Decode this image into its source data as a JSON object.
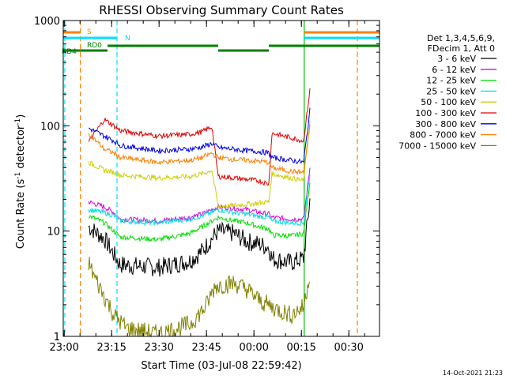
{
  "chart_data": {
    "type": "line",
    "title": "RHESSI Observing Summary Count Rates",
    "xlabel": "Start Time (03-Jul-08 22:59:42)",
    "ylabel_main": "Count Rate (s",
    "ylabel_sup": "-1",
    "ylabel_mid": " detector",
    "ylabel_end": ")",
    "x_unit": "minutes after 22:59:42",
    "xlim": [
      0,
      100
    ],
    "ylim": [
      1,
      1000
    ],
    "yscale": "log",
    "x_ticks": [
      {
        "label": "23:00",
        "t": 0.3
      },
      {
        "label": "23:15",
        "t": 15.3
      },
      {
        "label": "23:30",
        "t": 30.3
      },
      {
        "label": "23:45",
        "t": 45.3
      },
      {
        "label": "00:00",
        "t": 60.3
      },
      {
        "label": "00:15",
        "t": 75.3
      },
      {
        "label": "00:30",
        "t": 90.3
      }
    ],
    "y_ticks": [
      {
        "label": "1",
        "v": 1
      },
      {
        "label": "10",
        "v": 10
      },
      {
        "label": "100",
        "v": 100
      },
      {
        "label": "1000",
        "v": 1000
      }
    ],
    "legend_header": [
      "Det 1,3,4,5,6,9,",
      "FDecim 1, Att 0"
    ],
    "legend_placement": "right",
    "series": [
      {
        "name": "3 - 6 keV",
        "color": "#000000",
        "points": [
          [
            8,
            11
          ],
          [
            13,
            8.5
          ],
          [
            16,
            6
          ],
          [
            18,
            4.8
          ],
          [
            30,
            4.5
          ],
          [
            40,
            5.2
          ],
          [
            44,
            6.5
          ],
          [
            47,
            8.5
          ],
          [
            49,
            10
          ],
          [
            54,
            9.5
          ],
          [
            58,
            8
          ],
          [
            62,
            7.5
          ],
          [
            65,
            7
          ],
          [
            66,
            5.5
          ],
          [
            72,
            5
          ],
          [
            76,
            5.5
          ],
          [
            78,
            20
          ]
        ]
      },
      {
        "name": "6 - 12 keV",
        "color": "#e000e0",
        "points": [
          [
            8,
            19
          ],
          [
            13,
            17
          ],
          [
            16,
            15
          ],
          [
            18,
            13
          ],
          [
            30,
            12.5
          ],
          [
            40,
            13.5
          ],
          [
            44,
            14.5
          ],
          [
            47,
            16
          ],
          [
            49,
            17
          ],
          [
            54,
            16.5
          ],
          [
            58,
            16
          ],
          [
            62,
            15
          ],
          [
            65,
            14.5
          ],
          [
            66,
            13.5
          ],
          [
            72,
            13
          ],
          [
            76,
            13
          ],
          [
            78,
            40
          ]
        ]
      },
      {
        "name": "12 - 25 keV",
        "color": "#00e000",
        "points": [
          [
            8,
            14
          ],
          [
            13,
            12
          ],
          [
            16,
            10
          ],
          [
            18,
            8.8
          ],
          [
            30,
            8.3
          ],
          [
            40,
            9.5
          ],
          [
            44,
            11
          ],
          [
            47,
            12.5
          ],
          [
            49,
            13.5
          ],
          [
            54,
            12.5
          ],
          [
            58,
            12
          ],
          [
            62,
            11
          ],
          [
            65,
            10.5
          ],
          [
            66,
            9.2
          ],
          [
            72,
            9
          ],
          [
            76,
            9.5
          ],
          [
            78,
            30
          ]
        ]
      },
      {
        "name": "25 - 50 keV",
        "color": "#00e0e0",
        "points": [
          [
            8,
            16
          ],
          [
            13,
            15
          ],
          [
            16,
            14
          ],
          [
            18,
            12.5
          ],
          [
            30,
            12
          ],
          [
            40,
            13
          ],
          [
            44,
            14
          ],
          [
            47,
            15
          ],
          [
            49,
            16
          ],
          [
            54,
            15
          ],
          [
            58,
            14.5
          ],
          [
            62,
            13.8
          ],
          [
            65,
            13.5
          ],
          [
            66,
            12.5
          ],
          [
            72,
            12
          ],
          [
            76,
            12
          ],
          [
            78,
            35
          ]
        ]
      },
      {
        "name": "50 - 100 keV",
        "color": "#d0d000",
        "points": [
          [
            8,
            45
          ],
          [
            13,
            38
          ],
          [
            16,
            36
          ],
          [
            18,
            34
          ],
          [
            30,
            32
          ],
          [
            40,
            33
          ],
          [
            44,
            35
          ],
          [
            47,
            38
          ],
          [
            49,
            17
          ],
          [
            54,
            17.5
          ],
          [
            58,
            18
          ],
          [
            62,
            18.5
          ],
          [
            65,
            19
          ],
          [
            66,
            35
          ],
          [
            72,
            32
          ],
          [
            76,
            30
          ],
          [
            78,
            110
          ]
        ]
      },
      {
        "name": "100 - 300 keV",
        "color": "#e00000",
        "points": [
          [
            8,
            70
          ],
          [
            13,
            115
          ],
          [
            16,
            100
          ],
          [
            18,
            90
          ],
          [
            30,
            80
          ],
          [
            40,
            83
          ],
          [
            44,
            88
          ],
          [
            47,
            98
          ],
          [
            49,
            33
          ],
          [
            54,
            32
          ],
          [
            58,
            31
          ],
          [
            62,
            30
          ],
          [
            65,
            28
          ],
          [
            66,
            85
          ],
          [
            72,
            77
          ],
          [
            76,
            72
          ],
          [
            78,
            220
          ]
        ]
      },
      {
        "name": "300 - 800 keV",
        "color": "#0000e0",
        "points": [
          [
            8,
            95
          ],
          [
            13,
            80
          ],
          [
            16,
            72
          ],
          [
            18,
            65
          ],
          [
            30,
            58
          ],
          [
            40,
            60
          ],
          [
            44,
            63
          ],
          [
            47,
            68
          ],
          [
            49,
            62
          ],
          [
            54,
            60
          ],
          [
            58,
            58
          ],
          [
            62,
            57
          ],
          [
            65,
            55
          ],
          [
            66,
            50
          ],
          [
            72,
            47
          ],
          [
            76,
            45
          ],
          [
            78,
            140
          ]
        ]
      },
      {
        "name": "800 - 7000 keV",
        "color": "#ff8000",
        "points": [
          [
            8,
            85
          ],
          [
            13,
            60
          ],
          [
            16,
            55
          ],
          [
            18,
            50
          ],
          [
            30,
            45
          ],
          [
            40,
            47
          ],
          [
            44,
            50
          ],
          [
            47,
            55
          ],
          [
            49,
            50
          ],
          [
            54,
            48
          ],
          [
            58,
            47
          ],
          [
            62,
            46
          ],
          [
            65,
            45
          ],
          [
            66,
            40
          ],
          [
            72,
            37
          ],
          [
            76,
            36
          ],
          [
            78,
            100
          ]
        ]
      },
      {
        "name": "7000 - 15000 keV",
        "color": "#808000",
        "points": [
          [
            8,
            5
          ],
          [
            10,
            3.6
          ],
          [
            14,
            2.1
          ],
          [
            16,
            1.6
          ],
          [
            20,
            1.2
          ],
          [
            30,
            1.05
          ],
          [
            40,
            1.3
          ],
          [
            45,
            1.9
          ],
          [
            48,
            3
          ],
          [
            54,
            3.2
          ],
          [
            58,
            2.8
          ],
          [
            62,
            2.2
          ],
          [
            66,
            1.9
          ],
          [
            72,
            1.6
          ],
          [
            76,
            1.9
          ],
          [
            78,
            4
          ]
        ]
      }
    ],
    "status_bars": [
      {
        "label": "S",
        "color": "#ff8000",
        "segments": [
          [
            0,
            5.4
          ],
          [
            76.2,
            100
          ]
        ]
      },
      {
        "label": "N",
        "color": "#00e0ff",
        "segments": [
          [
            0,
            17
          ],
          [
            76.2,
            100
          ]
        ]
      },
      {
        "label": "RD0",
        "color": "#008000",
        "segments": [
          [
            14,
            49
          ],
          [
            65,
            100
          ]
        ]
      },
      {
        "label": "RD4",
        "color": "#008000",
        "segments": [
          [
            0,
            14
          ],
          [
            49,
            65
          ]
        ]
      }
    ],
    "event_lines": [
      {
        "t": 5.4,
        "color": "#ff8000"
      },
      {
        "t": 17,
        "color": "#00e0ff"
      },
      {
        "t": 76.2,
        "color": "#00c000"
      },
      {
        "t": 93,
        "color": "#ff8000"
      },
      {
        "t": 0.5,
        "color": "#00e0ff"
      }
    ],
    "grid": false
  },
  "footer": {
    "timestamp": "14-Oct-2021 21:23"
  }
}
